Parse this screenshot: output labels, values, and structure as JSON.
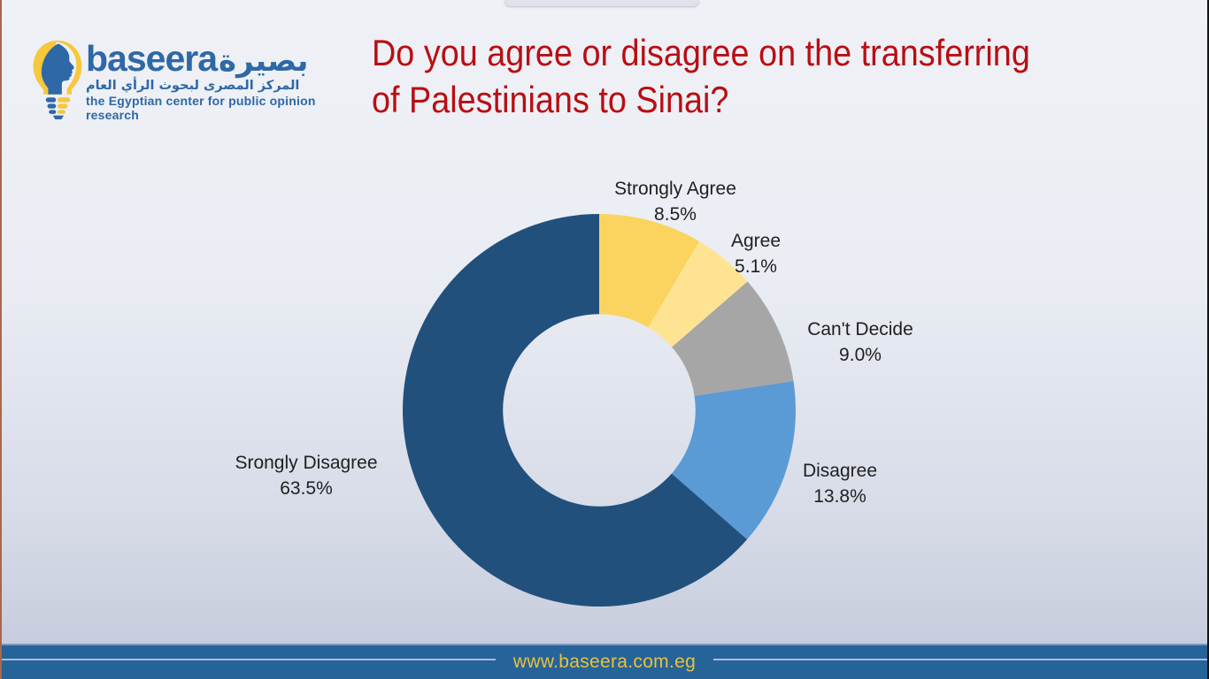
{
  "slide": {
    "title": "Do you agree or disagree on the transferring\nof Palestinians to Sinai?",
    "title_color": "#B80E13",
    "background_top": "#EFF1F6",
    "background_bottom": "#C3C9DB"
  },
  "logo": {
    "brand_latin": "baseera",
    "brand_arabic": "بصيرة",
    "tagline_arabic": "المركز المصرى لبحوث الرأي العام",
    "tagline_english": "the Egyptian center for public opinion research",
    "brand_color": "#2E68A6",
    "bulb_yellow": "#F7C73C"
  },
  "chart_data": {
    "type": "pie",
    "variant": "donut",
    "title": "Do you agree or disagree on the transferring of Palestinians to Sinai?",
    "legend": "none",
    "labels_position": "outside",
    "start_angle_deg": 0,
    "direction": "clockwise",
    "hole_ratio": 0.49,
    "segments": [
      {
        "label": "Strongly Agree",
        "value": 8.5,
        "pct_text": "8.5%",
        "color": "#FBD35F"
      },
      {
        "label": "Agree",
        "value": 5.1,
        "pct_text": "5.1%",
        "color": "#FEE492"
      },
      {
        "label": "Can't Decide",
        "value": 9.0,
        "pct_text": "9.0%",
        "color": "#A6A6A6"
      },
      {
        "label": "Disagree",
        "value": 13.8,
        "pct_text": "13.8%",
        "color": "#5B9BD5"
      },
      {
        "label": "Srongly Disagree",
        "value": 63.5,
        "pct_text": "63.5%",
        "color": "#21507C"
      }
    ]
  },
  "footer": {
    "url": "www.baseera.com.eg",
    "bar_color": "#266399",
    "text_color": "#E9C23C",
    "rule_color": "#AEBBDD"
  }
}
